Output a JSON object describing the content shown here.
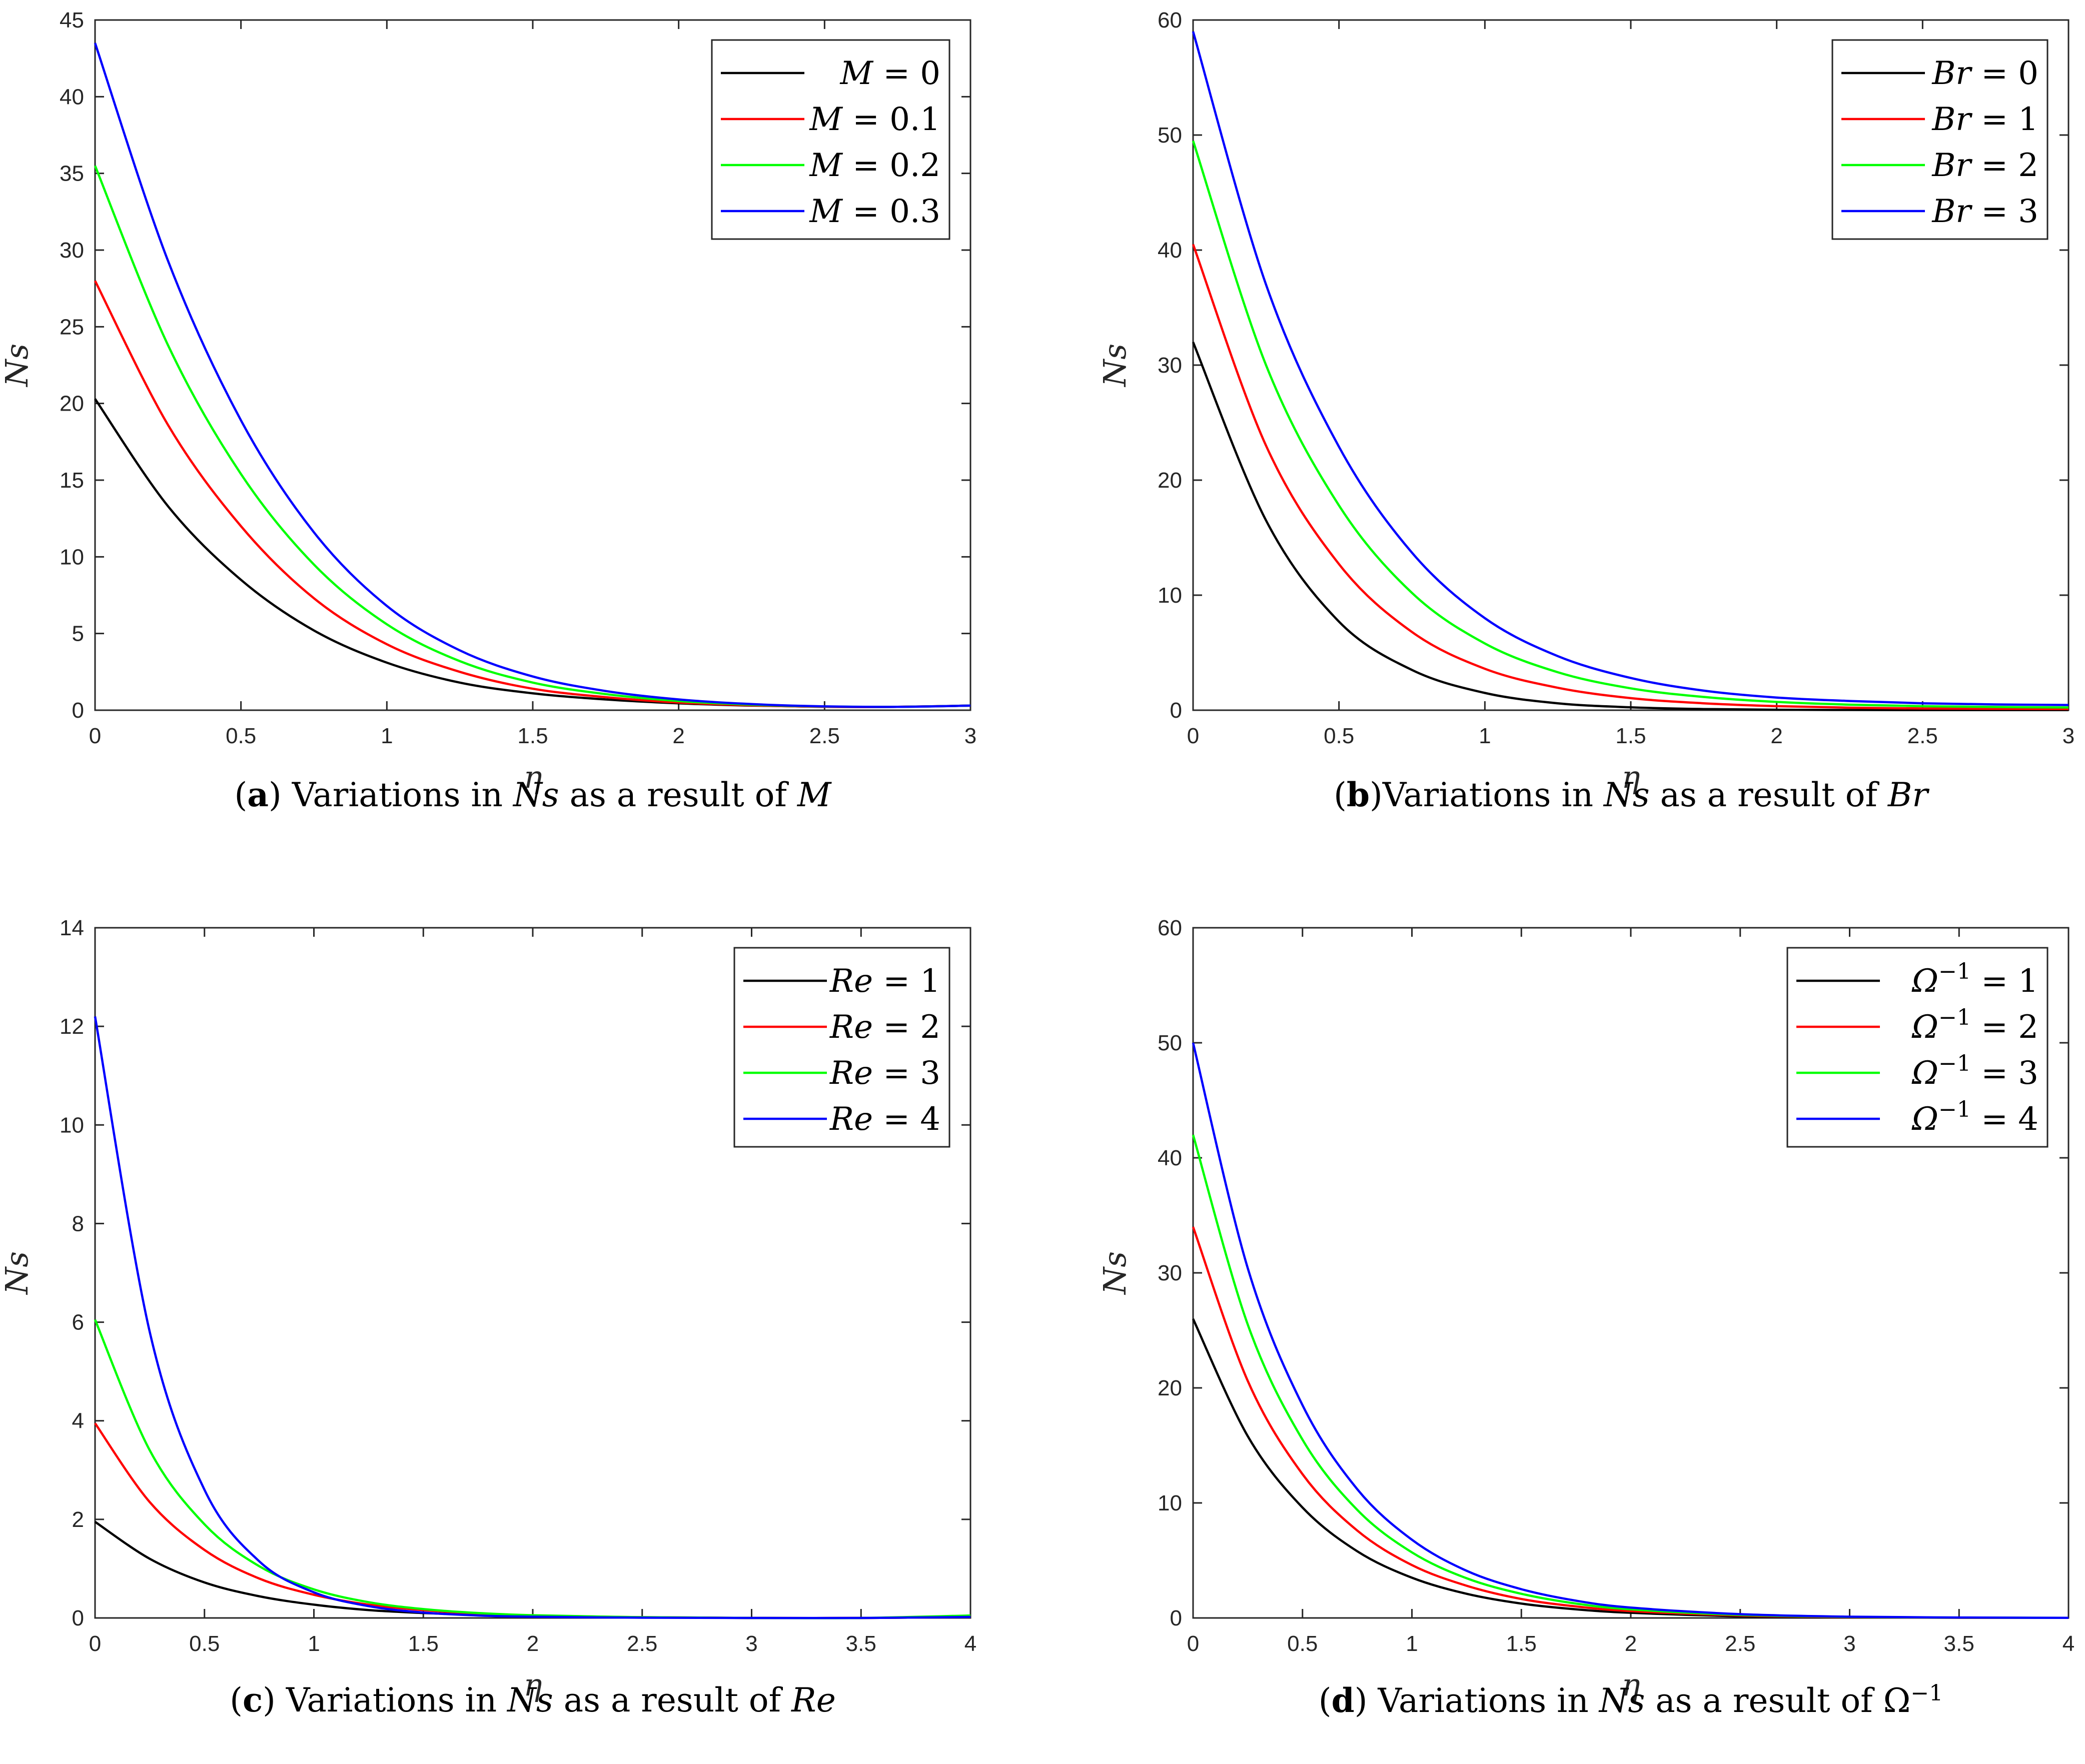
{
  "chart_data": [
    {
      "id": "a",
      "type": "line",
      "caption": {
        "letter": "a",
        "prefix": ") Variations in ",
        "var1": "Ns",
        "middle": " as a result of ",
        "var2": "M",
        "sup": ""
      },
      "xlabel": "η",
      "ylabel": "Ns",
      "xlim": [
        0,
        3
      ],
      "ylim": [
        0,
        45
      ],
      "xticks": [
        0,
        0.5,
        1,
        1.5,
        2,
        2.5,
        3
      ],
      "yticks": [
        0,
        5,
        10,
        15,
        20,
        25,
        30,
        35,
        40,
        45
      ],
      "legend_position": "top-right",
      "series": [
        {
          "name": "M = 0",
          "legend_var": "M",
          "legend_sup": "",
          "legend_val": "= 0",
          "color": "#000000",
          "x": [
            0,
            0.25,
            0.5,
            0.75,
            1,
            1.25,
            1.5,
            1.75,
            2,
            2.25,
            2.5,
            2.75,
            3
          ],
          "values": [
            20.3,
            13.3,
            8.5,
            5.2,
            3.1,
            1.8,
            1.1,
            0.7,
            0.45,
            0.3,
            0.22,
            0.22,
            0.3
          ]
        },
        {
          "name": "M = 0.1",
          "legend_var": "M",
          "legend_sup": "",
          "legend_val": "= 0.1",
          "color": "#ff0000",
          "x": [
            0,
            0.25,
            0.5,
            0.75,
            1,
            1.25,
            1.5,
            1.75,
            2,
            2.25,
            2.5,
            2.75,
            3
          ],
          "values": [
            28,
            18.6,
            12,
            7.3,
            4.3,
            2.5,
            1.4,
            0.85,
            0.5,
            0.32,
            0.22,
            0.22,
            0.3
          ]
        },
        {
          "name": "M = 0.2",
          "legend_var": "M",
          "legend_sup": "",
          "legend_val": "= 0.2",
          "color": "#00ff00",
          "x": [
            0,
            0.25,
            0.5,
            0.75,
            1,
            1.25,
            1.5,
            1.75,
            2,
            2.25,
            2.5,
            2.75,
            3
          ],
          "values": [
            35.5,
            23.8,
            15.4,
            9.5,
            5.6,
            3.2,
            1.8,
            1.05,
            0.6,
            0.36,
            0.24,
            0.22,
            0.3
          ]
        },
        {
          "name": "M = 0.3",
          "legend_var": "M",
          "legend_sup": "",
          "legend_val": "= 0.3",
          "color": "#0000ff",
          "x": [
            0,
            0.25,
            0.5,
            0.75,
            1,
            1.25,
            1.5,
            1.75,
            2,
            2.25,
            2.5,
            2.75,
            3
          ],
          "values": [
            43.5,
            29.3,
            18.9,
            11.6,
            6.8,
            3.9,
            2.2,
            1.25,
            0.7,
            0.4,
            0.25,
            0.22,
            0.3
          ]
        }
      ]
    },
    {
      "id": "b",
      "type": "line",
      "caption": {
        "letter": "b",
        "prefix": ")Variations in ",
        "var1": "Ns",
        "middle": " as a result of ",
        "var2": "Br",
        "sup": ""
      },
      "xlabel": "η",
      "ylabel": "Ns",
      "xlim": [
        0,
        3
      ],
      "ylim": [
        0,
        60
      ],
      "xticks": [
        0,
        0.5,
        1,
        1.5,
        2,
        2.5,
        3
      ],
      "yticks": [
        0,
        10,
        20,
        30,
        40,
        50,
        60
      ],
      "legend_position": "top-right",
      "series": [
        {
          "name": "Br = 0",
          "legend_var": "Br",
          "legend_sup": "",
          "legend_val": "= 0",
          "color": "#000000",
          "x": [
            0,
            0.25,
            0.5,
            0.75,
            1,
            1.25,
            1.5,
            1.75,
            2,
            2.25,
            2.5,
            2.75,
            3
          ],
          "values": [
            32,
            16.5,
            7.7,
            3.5,
            1.5,
            0.6,
            0.25,
            0.1,
            0.04,
            0.02,
            0.01,
            0.01,
            0.01
          ]
        },
        {
          "name": "Br = 1",
          "legend_var": "Br",
          "legend_sup": "",
          "legend_val": "= 1",
          "color": "#ff0000",
          "x": [
            0,
            0.25,
            0.5,
            0.75,
            1,
            1.25,
            1.5,
            1.75,
            2,
            2.25,
            2.5,
            2.75,
            3
          ],
          "values": [
            40.5,
            23,
            12.7,
            6.8,
            3.6,
            1.95,
            1.05,
            0.6,
            0.35,
            0.22,
            0.15,
            0.12,
            0.1
          ]
        },
        {
          "name": "Br = 2",
          "legend_var": "Br",
          "legend_sup": "",
          "legend_val": "= 2",
          "color": "#00ff00",
          "x": [
            0,
            0.25,
            0.5,
            0.75,
            1,
            1.25,
            1.5,
            1.75,
            2,
            2.25,
            2.5,
            2.75,
            3
          ],
          "values": [
            49.5,
            30,
            17.8,
            10.2,
            5.8,
            3.3,
            1.9,
            1.15,
            0.72,
            0.48,
            0.35,
            0.28,
            0.24
          ]
        },
        {
          "name": "Br = 3",
          "legend_var": "Br",
          "legend_sup": "",
          "legend_val": "= 3",
          "color": "#0000ff",
          "x": [
            0,
            0.25,
            0.5,
            0.75,
            1,
            1.25,
            1.5,
            1.75,
            2,
            2.25,
            2.5,
            2.75,
            3
          ],
          "values": [
            59,
            37,
            22.9,
            13.7,
            8,
            4.7,
            2.8,
            1.7,
            1.1,
            0.8,
            0.6,
            0.5,
            0.45
          ]
        }
      ]
    },
    {
      "id": "c",
      "type": "line",
      "caption": {
        "letter": "c",
        "prefix": ") Variations in ",
        "var1": "Ns",
        "middle": " as a result of ",
        "var2": "Re",
        "sup": ""
      },
      "xlabel": "η",
      "ylabel": "Ns",
      "xlim": [
        0,
        4
      ],
      "ylim": [
        0,
        14
      ],
      "xticks": [
        0,
        0.5,
        1,
        1.5,
        2,
        2.5,
        3,
        3.5,
        4
      ],
      "yticks": [
        0,
        2,
        4,
        6,
        8,
        10,
        12,
        14
      ],
      "legend_position": "top-right",
      "series": [
        {
          "name": "Re = 1",
          "legend_var": "Re",
          "legend_sup": "",
          "legend_val": "= 1",
          "color": "#000000",
          "x": [
            0,
            0.25,
            0.5,
            0.75,
            1,
            1.25,
            1.5,
            1.75,
            2,
            2.5,
            3,
            3.5,
            4
          ],
          "values": [
            1.95,
            1.2,
            0.72,
            0.44,
            0.27,
            0.16,
            0.1,
            0.06,
            0.04,
            0.01,
            0,
            0,
            0.02
          ]
        },
        {
          "name": "Re = 2",
          "legend_var": "Re",
          "legend_sup": "",
          "legend_val": "= 2",
          "color": "#ff0000",
          "x": [
            0,
            0.25,
            0.5,
            0.75,
            1,
            1.25,
            1.5,
            1.75,
            2,
            2.5,
            3,
            3.5,
            4
          ],
          "values": [
            3.95,
            2.35,
            1.38,
            0.8,
            0.47,
            0.27,
            0.16,
            0.09,
            0.05,
            0.015,
            0,
            0,
            0.02
          ]
        },
        {
          "name": "Re = 3",
          "legend_var": "Re",
          "legend_sup": "",
          "legend_val": "= 3",
          "color": "#00ff00",
          "x": [
            0,
            0.25,
            0.5,
            0.75,
            1,
            1.25,
            1.5,
            1.75,
            2,
            2.5,
            3,
            3.5,
            4
          ],
          "values": [
            6.05,
            3.4,
            1.9,
            1.05,
            0.58,
            0.32,
            0.18,
            0.1,
            0.055,
            0.015,
            0,
            0,
            0.05
          ]
        },
        {
          "name": "Re = 4",
          "legend_var": "Re",
          "legend_sup": "",
          "legend_val": "= 4",
          "color": "#0000ff",
          "x": [
            0,
            0.25,
            0.5,
            0.75,
            1,
            1.25,
            1.5,
            1.75,
            2,
            2.5,
            3,
            3.5,
            4
          ],
          "values": [
            12.2,
            5.8,
            2.6,
            1.15,
            0.52,
            0.24,
            0.11,
            0.05,
            0.025,
            0.005,
            0,
            0,
            0.02
          ]
        }
      ]
    },
    {
      "id": "d",
      "type": "line",
      "caption": {
        "letter": "d",
        "prefix": ") Variations in ",
        "var1": "Ns",
        "middle": " as a result of ",
        "var2": "Ω",
        "sup": "−1"
      },
      "xlabel": "η",
      "ylabel": "Ns",
      "xlim": [
        0,
        4
      ],
      "ylim": [
        0,
        60
      ],
      "xticks": [
        0,
        0.5,
        1,
        1.5,
        2,
        2.5,
        3,
        3.5,
        4
      ],
      "yticks": [
        0,
        10,
        20,
        30,
        40,
        50,
        60
      ],
      "legend_position": "top-right",
      "series": [
        {
          "name": "Ω−1 = 1",
          "legend_var": "Ω",
          "legend_sup": "−1",
          "legend_val": "= 1",
          "color": "#000000",
          "x": [
            0,
            0.25,
            0.5,
            0.75,
            1,
            1.25,
            1.5,
            1.75,
            2,
            2.5,
            3,
            3.5,
            4
          ],
          "values": [
            26,
            15.8,
            9.6,
            5.8,
            3.5,
            2.1,
            1.25,
            0.75,
            0.45,
            0.15,
            0.05,
            0.02,
            0.01
          ]
        },
        {
          "name": "Ω−1 = 2",
          "legend_var": "Ω",
          "legend_sup": "−1",
          "legend_val": "= 2",
          "color": "#ff0000",
          "x": [
            0,
            0.25,
            0.5,
            0.75,
            1,
            1.25,
            1.5,
            1.75,
            2,
            2.5,
            3,
            3.5,
            4
          ],
          "values": [
            34,
            20.6,
            12.5,
            7.6,
            4.6,
            2.8,
            1.65,
            1,
            0.6,
            0.22,
            0.07,
            0.02,
            0.01
          ]
        },
        {
          "name": "Ω−1 = 3",
          "legend_var": "Ω",
          "legend_sup": "−1",
          "legend_val": "= 3",
          "color": "#00ff00",
          "x": [
            0,
            0.25,
            0.5,
            0.75,
            1,
            1.25,
            1.5,
            1.75,
            2,
            2.5,
            3,
            3.5,
            4
          ],
          "values": [
            42,
            25.5,
            15.5,
            9.4,
            5.7,
            3.45,
            2.1,
            1.25,
            0.75,
            0.27,
            0.09,
            0.03,
            0.01
          ]
        },
        {
          "name": "Ω−1 = 4",
          "legend_var": "Ω",
          "legend_sup": "−1",
          "legend_val": "= 4",
          "color": "#0000ff",
          "x": [
            0,
            0.25,
            0.5,
            0.75,
            1,
            1.25,
            1.5,
            1.75,
            2,
            2.5,
            3,
            3.5,
            4
          ],
          "values": [
            50,
            30.4,
            18.5,
            11.2,
            6.8,
            4.1,
            2.5,
            1.5,
            0.9,
            0.33,
            0.11,
            0.04,
            0.01
          ]
        }
      ]
    }
  ]
}
